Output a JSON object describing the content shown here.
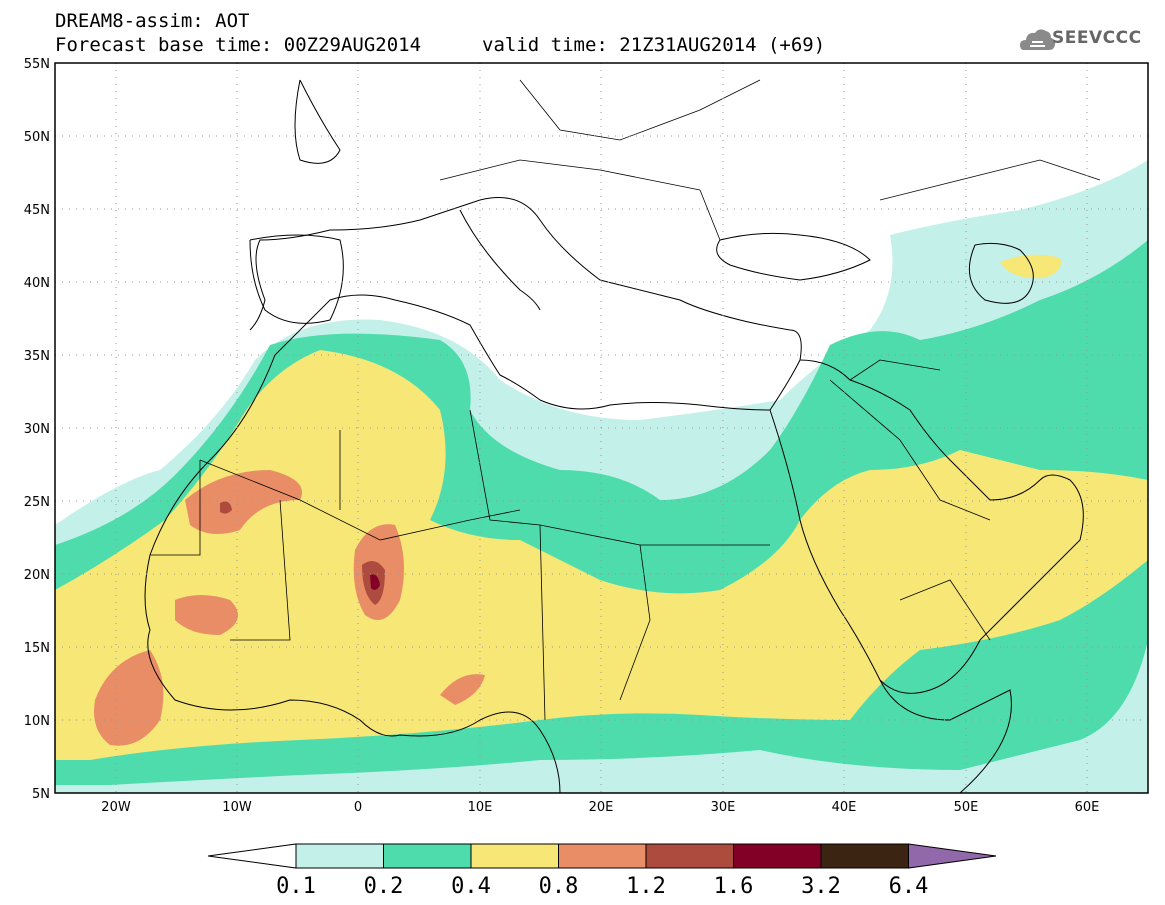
{
  "header": {
    "title": "DREAM8-assim: AOT",
    "base_time": "Forecast base time: 00Z29AUG2014",
    "valid_time": "valid time: 21Z31AUG2014 (+69)"
  },
  "logo": {
    "text": "SEEVCCC",
    "icon": "cloud-icon"
  },
  "map": {
    "lon_range": [
      -25,
      65
    ],
    "lat_range": [
      5,
      55
    ],
    "lat_ticks": [
      "5N",
      "10N",
      "15N",
      "20N",
      "25N",
      "30N",
      "35N",
      "40N",
      "45N",
      "50N",
      "55N"
    ],
    "lon_ticks": [
      "20W",
      "10W",
      "0",
      "10E",
      "20E",
      "30E",
      "40E",
      "50E",
      "60E"
    ],
    "grid": "dotted"
  },
  "colorbar": {
    "labels": [
      "0.1",
      "0.2",
      "0.4",
      "0.8",
      "1.2",
      "1.6",
      "3.2",
      "6.4"
    ],
    "colors": [
      "#ffffff",
      "#c4f0ea",
      "#4fdcac",
      "#f6e776",
      "#e88d66",
      "#ad4c3e",
      "#820026",
      "#3c2412",
      "#9169ab"
    ]
  }
}
